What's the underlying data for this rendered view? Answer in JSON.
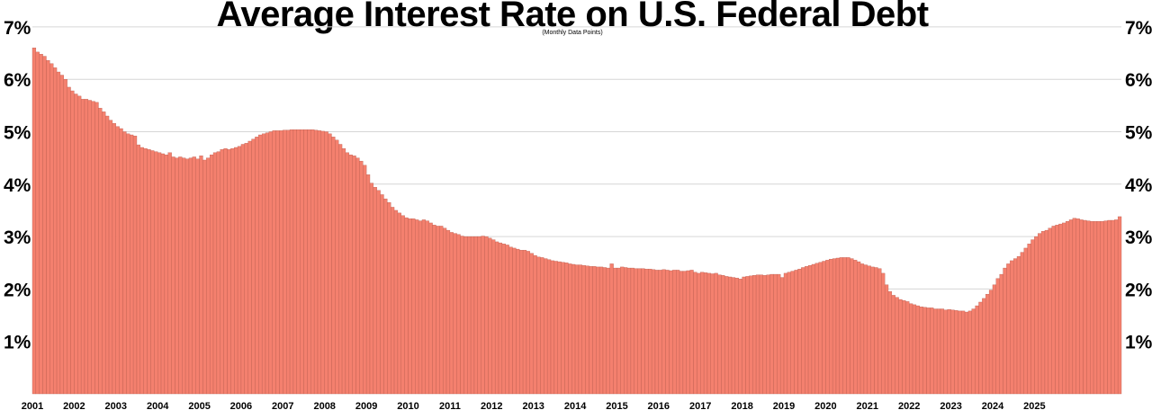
{
  "chart_data": {
    "type": "bar",
    "title": "Average Interest Rate on U.S. Federal Debt",
    "subtitle": "(Monthly Data Points)",
    "xlabel": "",
    "ylabel": "",
    "ylim": [
      0,
      7
    ],
    "y_ticks": [
      "1%",
      "2%",
      "3%",
      "4%",
      "5%",
      "6%",
      "7%"
    ],
    "x_ticks": [
      "2001",
      "2002",
      "2003",
      "2004",
      "2005",
      "2006",
      "2007",
      "2008",
      "2009",
      "2010",
      "2011",
      "2012",
      "2013",
      "2014",
      "2015",
      "2016",
      "2017",
      "2018",
      "2019",
      "2020",
      "2021",
      "2022",
      "2023",
      "2024",
      "2025"
    ],
    "grid": true,
    "bar_color": "#f4806e",
    "bar_edge_color": "#b85a4c",
    "start_month": "2001-01",
    "values": [
      6.6,
      6.52,
      6.48,
      6.44,
      6.36,
      6.3,
      6.22,
      6.14,
      6.08,
      6.0,
      5.85,
      5.78,
      5.72,
      5.68,
      5.62,
      5.62,
      5.6,
      5.58,
      5.56,
      5.45,
      5.38,
      5.3,
      5.22,
      5.16,
      5.1,
      5.06,
      5.0,
      4.96,
      4.94,
      4.92,
      4.75,
      4.7,
      4.68,
      4.66,
      4.64,
      4.62,
      4.6,
      4.58,
      4.56,
      4.6,
      4.52,
      4.5,
      4.52,
      4.5,
      4.48,
      4.5,
      4.52,
      4.48,
      4.54,
      4.46,
      4.5,
      4.56,
      4.6,
      4.62,
      4.66,
      4.68,
      4.66,
      4.68,
      4.7,
      4.72,
      4.76,
      4.78,
      4.82,
      4.86,
      4.9,
      4.94,
      4.96,
      4.98,
      5.0,
      5.02,
      5.02,
      5.02,
      5.03,
      5.03,
      5.04,
      5.04,
      5.04,
      5.04,
      5.04,
      5.04,
      5.04,
      5.03,
      5.02,
      5.01,
      5.0,
      4.96,
      4.9,
      4.84,
      4.76,
      4.68,
      4.6,
      4.56,
      4.54,
      4.5,
      4.44,
      4.36,
      4.18,
      4.02,
      3.94,
      3.88,
      3.8,
      3.72,
      3.65,
      3.56,
      3.5,
      3.45,
      3.4,
      3.36,
      3.34,
      3.34,
      3.32,
      3.3,
      3.32,
      3.3,
      3.26,
      3.22,
      3.2,
      3.2,
      3.16,
      3.12,
      3.08,
      3.06,
      3.04,
      3.01,
      3.0,
      3.0,
      3.0,
      3.0,
      3.0,
      3.01,
      3.0,
      2.97,
      2.94,
      2.9,
      2.88,
      2.86,
      2.84,
      2.8,
      2.78,
      2.76,
      2.74,
      2.74,
      2.72,
      2.68,
      2.64,
      2.61,
      2.6,
      2.58,
      2.56,
      2.54,
      2.53,
      2.52,
      2.51,
      2.5,
      2.48,
      2.47,
      2.46,
      2.46,
      2.45,
      2.44,
      2.43,
      2.43,
      2.42,
      2.42,
      2.41,
      2.4,
      2.48,
      2.4,
      2.4,
      2.42,
      2.41,
      2.4,
      2.4,
      2.39,
      2.39,
      2.39,
      2.38,
      2.38,
      2.37,
      2.36,
      2.36,
      2.37,
      2.36,
      2.35,
      2.36,
      2.36,
      2.34,
      2.34,
      2.35,
      2.36,
      2.32,
      2.3,
      2.32,
      2.31,
      2.3,
      2.29,
      2.3,
      2.27,
      2.26,
      2.24,
      2.23,
      2.22,
      2.21,
      2.19,
      2.23,
      2.24,
      2.25,
      2.26,
      2.27,
      2.27,
      2.26,
      2.27,
      2.28,
      2.28,
      2.28,
      2.22,
      2.3,
      2.32,
      2.34,
      2.36,
      2.38,
      2.41,
      2.43,
      2.45,
      2.47,
      2.49,
      2.51,
      2.53,
      2.55,
      2.57,
      2.58,
      2.59,
      2.6,
      2.6,
      2.6,
      2.58,
      2.55,
      2.52,
      2.48,
      2.46,
      2.44,
      2.42,
      2.41,
      2.39,
      2.3,
      2.08,
      1.95,
      1.88,
      1.84,
      1.8,
      1.78,
      1.76,
      1.72,
      1.7,
      1.68,
      1.66,
      1.65,
      1.64,
      1.64,
      1.62,
      1.62,
      1.62,
      1.6,
      1.61,
      1.6,
      1.59,
      1.58,
      1.58,
      1.56,
      1.58,
      1.62,
      1.68,
      1.75,
      1.82,
      1.9,
      1.98,
      2.08,
      2.2,
      2.28,
      2.4,
      2.48,
      2.54,
      2.58,
      2.62,
      2.7,
      2.78,
      2.86,
      2.94,
      3.0,
      3.06,
      3.1,
      3.12,
      3.16,
      3.2,
      3.22,
      3.24,
      3.26,
      3.29,
      3.32,
      3.35,
      3.34,
      3.32,
      3.31,
      3.3,
      3.29,
      3.29,
      3.29,
      3.29,
      3.3,
      3.31,
      3.31,
      3.32,
      3.38
    ]
  }
}
